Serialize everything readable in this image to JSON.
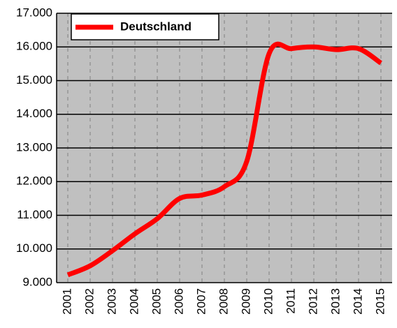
{
  "chart_data": {
    "type": "line",
    "categories": [
      "2001",
      "2002",
      "2003",
      "2004",
      "2005",
      "2006",
      "2007",
      "2008",
      "2009",
      "2010",
      "2011",
      "2012",
      "2013",
      "2014",
      "2015"
    ],
    "series": [
      {
        "name": "Deutschland",
        "color": "#ff0000",
        "values": [
          9230,
          9500,
          9950,
          10450,
          10900,
          11500,
          11600,
          11850,
          12600,
          15800,
          15950,
          16000,
          15920,
          15950,
          15520
        ]
      }
    ],
    "ylim": [
      9000,
      17000
    ],
    "yticks": [
      {
        "value": 9000,
        "label": "9.000"
      },
      {
        "value": 10000,
        "label": "10.000"
      },
      {
        "value": 11000,
        "label": "11.000"
      },
      {
        "value": 12000,
        "label": "12.000"
      },
      {
        "value": 13000,
        "label": "13.000"
      },
      {
        "value": 14000,
        "label": "14.000"
      },
      {
        "value": 15000,
        "label": "15.000"
      },
      {
        "value": 16000,
        "label": "16.000"
      },
      {
        "value": 17000,
        "label": "17.000"
      }
    ],
    "grid": true,
    "legend": "upper left"
  }
}
